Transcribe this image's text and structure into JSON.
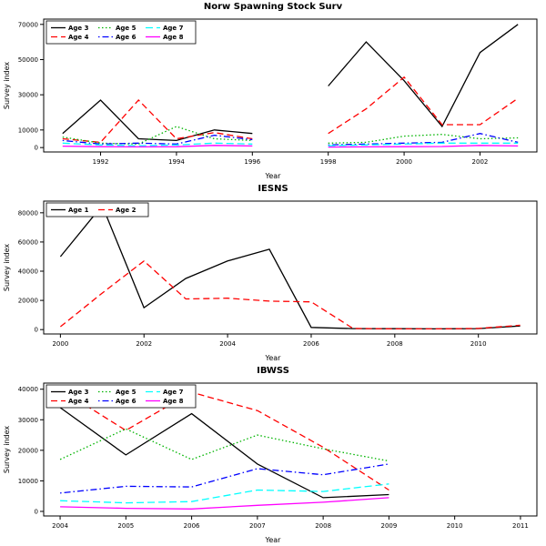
{
  "page": {
    "background": "#ffffff"
  },
  "chart_data": [
    {
      "type": "line",
      "title": "Norw Spawning Stock Surv",
      "xlabel": "Year",
      "ylabel": "Survey index",
      "x": [
        1991,
        1992,
        1993,
        1994,
        1995,
        1996,
        1997,
        1998,
        1999,
        2000,
        2001,
        2002,
        2003
      ],
      "xlim": [
        1990.5,
        2003.5
      ],
      "ylim": [
        -2500,
        73000
      ],
      "xticks": [
        1992,
        1994,
        1996,
        1998,
        2000,
        2002
      ],
      "yticks": [
        0,
        10000,
        30000,
        50000,
        70000
      ],
      "legend_cols": 3,
      "series": [
        {
          "name": "Age 3",
          "color": "#000000",
          "dash": "solid",
          "values": [
            8000,
            27000,
            5000,
            4000,
            10000,
            8000,
            null,
            35000,
            60000,
            38000,
            12000,
            54000,
            70000
          ]
        },
        {
          "name": "Age 4",
          "color": "#ff0000",
          "dash": "dashed",
          "values": [
            5000,
            3000,
            27000,
            5000,
            8500,
            5000,
            null,
            8000,
            22000,
            40000,
            13000,
            13000,
            28000
          ]
        },
        {
          "name": "Age 5",
          "color": "#00b400",
          "dash": "dotted",
          "values": [
            6000,
            2500,
            2000,
            12000,
            5000,
            4000,
            null,
            2500,
            3000,
            6500,
            7500,
            5000,
            5500
          ]
        },
        {
          "name": "Age 6",
          "color": "#0000ff",
          "dash": "dotdash",
          "values": [
            4000,
            2000,
            2500,
            2000,
            7000,
            4500,
            null,
            1500,
            2000,
            2500,
            3000,
            8000,
            3000
          ]
        },
        {
          "name": "Age 7",
          "color": "#00ffff",
          "dash": "longdash",
          "values": [
            2500,
            1500,
            1000,
            1500,
            2500,
            2000,
            null,
            1000,
            1500,
            2000,
            2500,
            2500,
            2500
          ]
        },
        {
          "name": "Age 8",
          "color": "#ff00ff",
          "dash": "solid",
          "values": [
            800,
            500,
            400,
            500,
            1200,
            900,
            null,
            300,
            400,
            500,
            600,
            1200,
            900
          ]
        }
      ]
    },
    {
      "type": "line",
      "title": "IESNS",
      "xlabel": "Year",
      "ylabel": "Survey index",
      "x": [
        2000,
        2001,
        2002,
        2003,
        2004,
        2005,
        2006,
        2007,
        2008,
        2009,
        2010,
        2011
      ],
      "xlim": [
        1999.6,
        2011.4
      ],
      "ylim": [
        -3000,
        88000
      ],
      "xticks": [
        2000,
        2002,
        2004,
        2006,
        2008,
        2010
      ],
      "yticks": [
        0,
        20000,
        40000,
        60000,
        80000
      ],
      "legend_cols": 2,
      "series": [
        {
          "name": "Age 1",
          "color": "#000000",
          "dash": "solid",
          "values": [
            50000,
            85000,
            15000,
            35000,
            47000,
            55000,
            1500,
            700,
            600,
            500,
            700,
            2500
          ]
        },
        {
          "name": "Age 2",
          "color": "#ff0000",
          "dash": "dashed",
          "values": [
            2000,
            25000,
            47000,
            21000,
            21500,
            19500,
            19000,
            800,
            500,
            500,
            800,
            3000
          ]
        }
      ]
    },
    {
      "type": "line",
      "title": "IBWSS",
      "xlabel": "Year",
      "ylabel": "Survey index",
      "x": [
        2004,
        2005,
        2006,
        2007,
        2008,
        2009
      ],
      "xlim": [
        2003.75,
        2011.25
      ],
      "ylim": [
        -1500,
        42000
      ],
      "xticks": [
        2004,
        2005,
        2006,
        2007,
        2008,
        2009,
        2010,
        2011
      ],
      "yticks": [
        0,
        10000,
        20000,
        30000,
        40000
      ],
      "legend_cols": 3,
      "series": [
        {
          "name": "Age 3",
          "color": "#000000",
          "dash": "solid",
          "values": [
            34000,
            18500,
            32000,
            15500,
            4500,
            5500
          ]
        },
        {
          "name": "Age 4",
          "color": "#ff0000",
          "dash": "dashed",
          "values": [
            40000,
            26500,
            39000,
            33000,
            21000,
            7000
          ]
        },
        {
          "name": "Age 5",
          "color": "#00b400",
          "dash": "dotted",
          "values": [
            17000,
            27000,
            17000,
            25000,
            20500,
            16500
          ]
        },
        {
          "name": "Age 6",
          "color": "#0000ff",
          "dash": "dotdash",
          "values": [
            6000,
            8200,
            8000,
            14000,
            12000,
            15500
          ]
        },
        {
          "name": "Age 7",
          "color": "#00ffff",
          "dash": "longdash",
          "values": [
            3500,
            2800,
            3200,
            7000,
            6500,
            9000
          ]
        },
        {
          "name": "Age 8",
          "color": "#ff00ff",
          "dash": "solid",
          "values": [
            1500,
            1000,
            800,
            2000,
            3000,
            4500
          ]
        }
      ]
    }
  ]
}
